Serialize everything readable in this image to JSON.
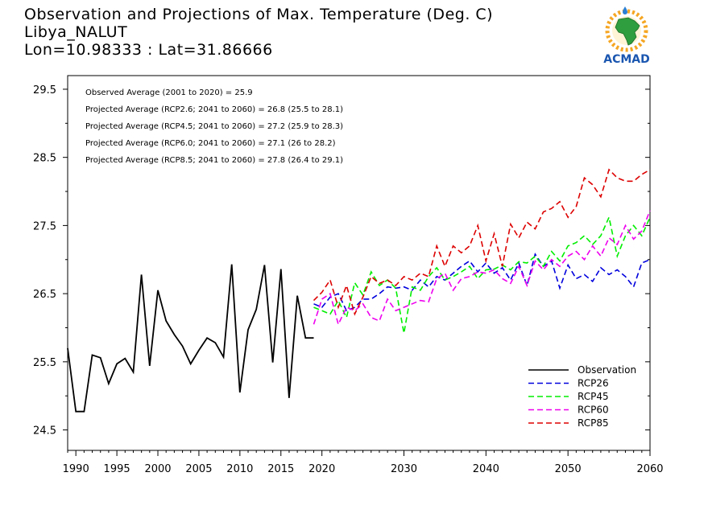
{
  "header": {
    "title_line1": "Observation and Projections of Max. Temperature (Deg. C)",
    "title_line2": "Libya_NALUT",
    "title_line3": "Lon=10.98333 : Lat=31.86666"
  },
  "logo": {
    "text": "ACMAD",
    "icon": "acmad-africa-logo"
  },
  "colors": {
    "Observation": "#000000",
    "RCP26": "#0000dd",
    "RCP45": "#00ee00",
    "RCP60": "#ee00ee",
    "RCP85": "#dd0000"
  },
  "stats": [
    "Observed Average (2001 to 2020) = 25.9",
    "Projected Average (RCP2.6; 2041 to 2060) = 26.8 (25.5 to 28.1)",
    "Projected Average (RCP4.5; 2041 to 2060) = 27.2 (25.9 to 28.3)",
    "Projected Average (RCP6.0; 2041 to 2060) = 27.1 (26 to 28.2)",
    "Projected Average (RCP8.5; 2041 to 2060) = 27.8 (26.4 to 29.1)"
  ],
  "chart_data": {
    "type": "line",
    "xlim": [
      1989,
      2060
    ],
    "ylim": [
      24.2,
      29.7
    ],
    "xticks": [
      1990,
      1995,
      2000,
      2005,
      2010,
      2015,
      2020,
      2030,
      2040,
      2050,
      2060
    ],
    "yticks": [
      24.5,
      25.5,
      26.5,
      27.5,
      28.5,
      29.5
    ],
    "xtick_labels": [
      "1990",
      "1995",
      "2000",
      "2005",
      "2010",
      "2015",
      "2020",
      "2030",
      "2040",
      "2050",
      "2060"
    ],
    "ytick_labels": [
      "24.5",
      "25.5",
      "26.5",
      "27.5",
      "28.5",
      "29.5"
    ],
    "legend_position": "bottom-right",
    "series": [
      {
        "name": "Observation",
        "dashed": false,
        "x": [
          1989,
          1990,
          1991,
          1992,
          1993,
          1994,
          1995,
          1996,
          1997,
          1998,
          1999,
          2000,
          2001,
          2002,
          2003,
          2004,
          2005,
          2006,
          2007,
          2008,
          2009,
          2010,
          2011,
          2012,
          2013,
          2014,
          2015,
          2016,
          2017,
          2018,
          2019
        ],
        "y": [
          25.7,
          24.77,
          24.77,
          25.6,
          25.56,
          25.18,
          25.47,
          25.55,
          25.35,
          26.78,
          25.44,
          26.55,
          26.1,
          25.9,
          25.73,
          25.47,
          25.67,
          25.85,
          25.78,
          25.57,
          26.93,
          25.05,
          25.97,
          26.27,
          26.92,
          25.49,
          26.86,
          24.97,
          26.47,
          25.85,
          25.85
        ]
      },
      {
        "name": "RCP26",
        "dashed": true,
        "x": [
          2019,
          2020,
          2021,
          2022,
          2023,
          2024,
          2025,
          2026,
          2027,
          2028,
          2029,
          2030,
          2031,
          2032,
          2033,
          2034,
          2035,
          2036,
          2037,
          2038,
          2039,
          2040,
          2041,
          2042,
          2043,
          2044,
          2045,
          2046,
          2047,
          2048,
          2049,
          2050,
          2051,
          2052,
          2053,
          2054,
          2055,
          2056,
          2057,
          2058,
          2059,
          2060
        ],
        "y": [
          26.35,
          26.3,
          26.45,
          26.5,
          26.25,
          26.3,
          26.42,
          26.42,
          26.5,
          26.6,
          26.58,
          26.6,
          26.55,
          26.7,
          26.6,
          26.75,
          26.7,
          26.8,
          26.9,
          26.98,
          26.82,
          26.95,
          26.8,
          26.88,
          26.7,
          26.95,
          26.62,
          27.08,
          26.9,
          26.98,
          26.58,
          26.92,
          26.72,
          26.78,
          26.68,
          26.88,
          26.78,
          26.85,
          26.75,
          26.6,
          26.95,
          27.0
        ]
      },
      {
        "name": "RCP45",
        "dashed": true,
        "x": [
          2019,
          2020,
          2021,
          2022,
          2023,
          2024,
          2025,
          2026,
          2027,
          2028,
          2029,
          2030,
          2031,
          2032,
          2033,
          2034,
          2035,
          2036,
          2037,
          2038,
          2039,
          2040,
          2041,
          2042,
          2043,
          2044,
          2045,
          2046,
          2047,
          2048,
          2049,
          2050,
          2051,
          2052,
          2053,
          2054,
          2055,
          2056,
          2057,
          2058,
          2059,
          2060
        ],
        "y": [
          26.3,
          26.25,
          26.2,
          26.4,
          26.15,
          26.66,
          26.48,
          26.82,
          26.62,
          26.7,
          26.58,
          25.92,
          26.6,
          26.55,
          26.75,
          26.88,
          26.7,
          26.75,
          26.82,
          26.9,
          26.72,
          26.85,
          26.86,
          26.92,
          26.85,
          26.97,
          26.95,
          27.05,
          26.9,
          27.12,
          26.98,
          27.2,
          27.25,
          27.35,
          27.22,
          27.35,
          27.62,
          27.05,
          27.35,
          27.5,
          27.35,
          27.62
        ]
      },
      {
        "name": "RCP60",
        "dashed": true,
        "x": [
          2019,
          2020,
          2021,
          2022,
          2023,
          2024,
          2025,
          2026,
          2027,
          2028,
          2029,
          2030,
          2031,
          2032,
          2033,
          2034,
          2035,
          2036,
          2037,
          2038,
          2039,
          2040,
          2041,
          2042,
          2043,
          2044,
          2045,
          2046,
          2047,
          2048,
          2049,
          2050,
          2051,
          2052,
          2053,
          2054,
          2055,
          2056,
          2057,
          2058,
          2059,
          2060
        ],
        "y": [
          26.05,
          26.42,
          26.5,
          26.05,
          26.3,
          26.25,
          26.35,
          26.15,
          26.1,
          26.42,
          26.25,
          26.3,
          26.35,
          26.4,
          26.38,
          26.72,
          26.8,
          26.55,
          26.72,
          26.75,
          26.82,
          26.8,
          26.85,
          26.72,
          26.65,
          26.9,
          26.62,
          26.98,
          26.85,
          27.0,
          26.9,
          27.05,
          27.12,
          27.0,
          27.2,
          27.05,
          27.32,
          27.22,
          27.5,
          27.3,
          27.42,
          27.72
        ]
      },
      {
        "name": "RCP85",
        "dashed": true,
        "x": [
          2019,
          2020,
          2021,
          2022,
          2023,
          2024,
          2025,
          2026,
          2027,
          2028,
          2029,
          2030,
          2031,
          2032,
          2033,
          2034,
          2035,
          2036,
          2037,
          2038,
          2039,
          2040,
          2041,
          2042,
          2043,
          2044,
          2045,
          2046,
          2047,
          2048,
          2049,
          2050,
          2051,
          2052,
          2053,
          2054,
          2055,
          2056,
          2057,
          2058,
          2059,
          2060
        ],
        "y": [
          26.4,
          26.52,
          26.7,
          26.3,
          26.62,
          26.2,
          26.45,
          26.75,
          26.65,
          26.7,
          26.62,
          26.75,
          26.7,
          26.8,
          26.75,
          27.2,
          26.9,
          27.2,
          27.1,
          27.2,
          27.5,
          26.98,
          27.38,
          26.9,
          27.52,
          27.32,
          27.55,
          27.45,
          27.7,
          27.75,
          27.85,
          27.62,
          27.78,
          28.2,
          28.1,
          27.92,
          28.32,
          28.2,
          28.15,
          28.15,
          28.25,
          28.32
        ]
      }
    ]
  }
}
